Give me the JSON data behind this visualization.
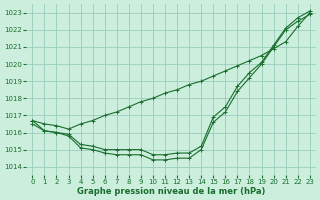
{
  "title": "Graphe pression niveau de la mer (hPa)",
  "background_color": "#cceedd",
  "grid_color": "#99ccbb",
  "line_color": "#1a6e2e",
  "xlim": [
    -0.5,
    23.5
  ],
  "ylim": [
    1013.5,
    1023.5
  ],
  "yticks": [
    1014,
    1015,
    1016,
    1017,
    1018,
    1019,
    1020,
    1021,
    1022,
    1023
  ],
  "xticks": [
    0,
    1,
    2,
    3,
    4,
    5,
    6,
    7,
    8,
    9,
    10,
    11,
    12,
    13,
    14,
    15,
    16,
    17,
    18,
    19,
    20,
    21,
    22,
    23
  ],
  "series": [
    {
      "x": [
        0,
        1,
        2,
        3,
        4,
        5,
        6,
        7,
        8,
        9,
        10,
        11,
        12,
        13,
        14,
        15,
        16,
        17,
        18,
        19,
        20,
        21,
        22,
        23
      ],
      "y": [
        1016.5,
        1016.1,
        1016.0,
        1015.8,
        1015.1,
        1015.0,
        1014.8,
        1014.7,
        1014.7,
        1014.7,
        1014.4,
        1014.4,
        1014.5,
        1014.5,
        1015.0,
        1016.6,
        1017.2,
        1018.4,
        1019.2,
        1020.0,
        1021.0,
        1022.0,
        1022.5,
        1022.9
      ]
    },
    {
      "x": [
        0,
        1,
        2,
        3,
        4,
        5,
        6,
        7,
        8,
        9,
        10,
        11,
        12,
        13,
        14,
        15,
        16,
        17,
        18,
        19,
        20,
        21,
        22,
        23
      ],
      "y": [
        1016.7,
        1016.1,
        1016.0,
        1015.9,
        1015.3,
        1015.2,
        1015.0,
        1015.0,
        1015.0,
        1015.0,
        1014.7,
        1014.7,
        1014.8,
        1014.8,
        1015.2,
        1016.9,
        1017.5,
        1018.7,
        1019.5,
        1020.1,
        1021.1,
        1022.1,
        1022.7,
        1023.1
      ]
    },
    {
      "x": [
        0,
        1,
        2,
        3,
        4,
        5,
        6,
        7,
        8,
        9,
        10,
        11,
        12,
        13,
        14,
        15,
        16,
        17,
        18,
        19,
        20,
        21,
        22,
        23
      ],
      "y": [
        1016.7,
        1016.5,
        1016.4,
        1016.2,
        1016.5,
        1016.7,
        1017.0,
        1017.2,
        1017.5,
        1017.8,
        1018.0,
        1018.3,
        1018.5,
        1018.8,
        1019.0,
        1019.3,
        1019.6,
        1019.9,
        1020.2,
        1020.5,
        1020.9,
        1021.3,
        1022.2,
        1023.0
      ]
    }
  ]
}
